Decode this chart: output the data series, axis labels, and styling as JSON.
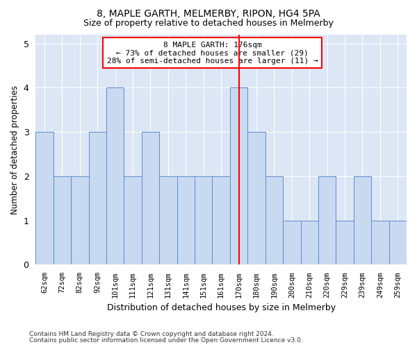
{
  "title1": "8, MAPLE GARTH, MELMERBY, RIPON, HG4 5PA",
  "title2": "Size of property relative to detached houses in Melmerby",
  "xlabel": "Distribution of detached houses by size in Melmerby",
  "ylabel": "Number of detached properties",
  "categories": [
    "62sqm",
    "72sqm",
    "82sqm",
    "92sqm",
    "101sqm",
    "111sqm",
    "121sqm",
    "131sqm",
    "141sqm",
    "151sqm",
    "161sqm",
    "170sqm",
    "180sqm",
    "190sqm",
    "200sqm",
    "210sqm",
    "220sqm",
    "229sqm",
    "239sqm",
    "249sqm",
    "259sqm"
  ],
  "values": [
    3,
    2,
    2,
    3,
    4,
    2,
    3,
    2,
    2,
    2,
    2,
    4,
    3,
    2,
    1,
    1,
    2,
    1,
    2,
    1,
    1
  ],
  "bar_color": "#c9d9f0",
  "bar_edge_color": "#5b8bd0",
  "vline_index": 11,
  "vline_color": "red",
  "annotation_text": "8 MAPLE GARTH: 176sqm\n← 73% of detached houses are smaller (29)\n28% of semi-detached houses are larger (11) →",
  "ylim": [
    0,
    5.2
  ],
  "yticks": [
    0,
    1,
    2,
    3,
    4,
    5
  ],
  "footer1": "Contains HM Land Registry data © Crown copyright and database right 2024.",
  "footer2": "Contains public sector information licensed under the Open Government Licence v3.0.",
  "plot_bg_color": "#dce6f5"
}
